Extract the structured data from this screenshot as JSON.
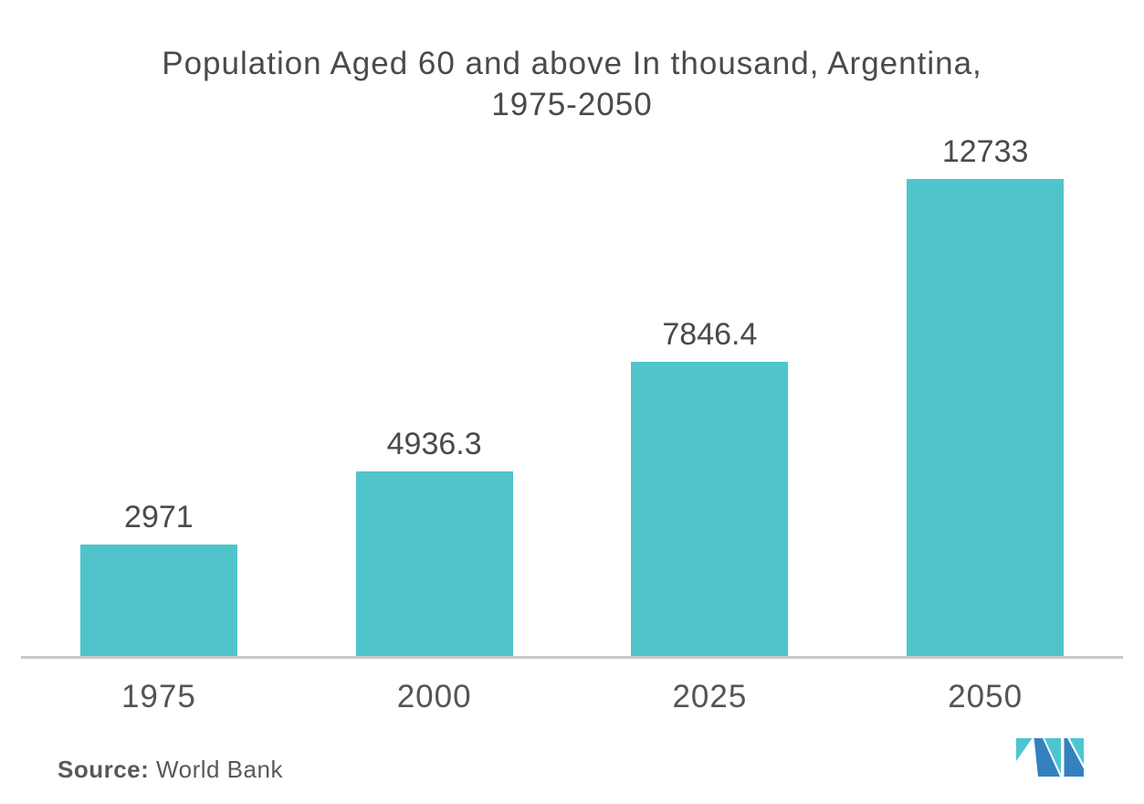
{
  "header": {
    "title_lines": [
      "Population Aged 60 and above In thousand, Argentina,",
      "1975-2050"
    ]
  },
  "chart_data": {
    "type": "bar",
    "title": "Population Aged 60 and above In thousand, Argentina, 1975-2050",
    "categories": [
      "1975",
      "2000",
      "2025",
      "2050"
    ],
    "values": [
      2971,
      4936.3,
      7846.4,
      12733
    ],
    "value_labels": [
      "2971",
      "4936.3",
      "7846.4",
      "12733"
    ],
    "xlabel": "",
    "ylabel": "",
    "ylim": [
      0,
      12733
    ],
    "grid": false,
    "legend": false,
    "bar_color": "#4fc4cb",
    "axis_line_color": "#c8c8c8",
    "label_color": "#4a4a4c"
  },
  "footer": {
    "source_label": "Source:",
    "source_value": " World Bank"
  },
  "logo": {
    "name": "mordor-intelligence-m-mark",
    "blue": "#3381bf",
    "teal": "#4dc6d0"
  }
}
